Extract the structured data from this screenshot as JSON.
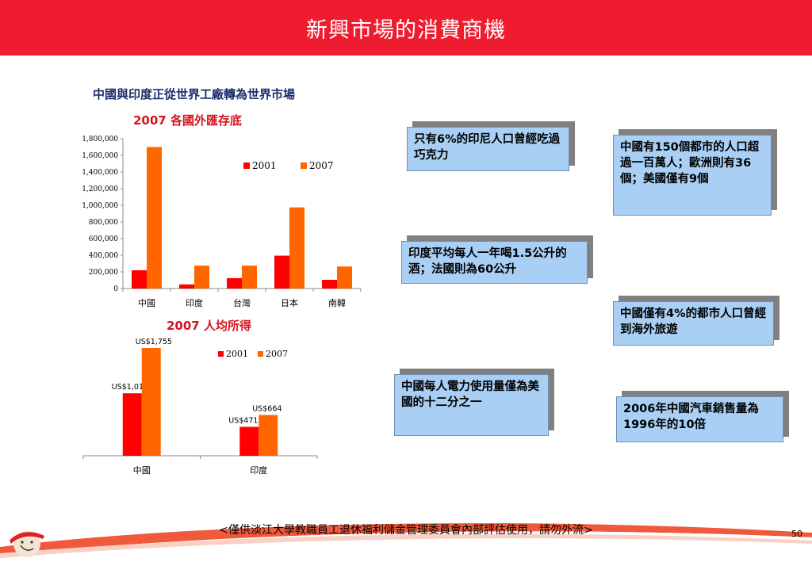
{
  "title": "新興市場的消費商機",
  "main_heading": "中國與印度正從世界工廠轉為世界市場",
  "colors": {
    "accent": "#ee1c2e",
    "series_2001": "#ff0000",
    "series_2007": "#ff6600",
    "callout": "#a9cff5"
  },
  "chart_data": [
    {
      "type": "bar",
      "title": "2007 各國外匯存底",
      "categories": [
        "中國",
        "印度",
        "台灣",
        "日本",
        "南韓"
      ],
      "series": [
        {
          "name": "2001",
          "values": [
            220000,
            50000,
            125000,
            395000,
            105000
          ]
        },
        {
          "name": "2007",
          "values": [
            1700000,
            275000,
            275000,
            975000,
            265000
          ]
        }
      ],
      "ylim": [
        0,
        1800000
      ],
      "yticks": [
        "0",
        "200,000",
        "400,000",
        "600,000",
        "800,000",
        "1,000,000",
        "1,200,000",
        "1,400,000",
        "1,600,000",
        "1,800,000"
      ],
      "legend": "top-right"
    },
    {
      "type": "bar",
      "title": "2007 人均所得",
      "categories": [
        "中國",
        "印度"
      ],
      "series": [
        {
          "name": "2001",
          "values": [
            1017,
            471
          ],
          "labels": [
            "US$1,017",
            "US$471"
          ]
        },
        {
          "name": "2007",
          "values": [
            1755,
            664
          ],
          "labels": [
            "US$1,755",
            "US$664"
          ]
        }
      ],
      "ylim": [
        0,
        1755
      ],
      "legend": "top-right"
    }
  ],
  "callouts": [
    "只有6%的印尼人口曾經吃過巧克力",
    "中國有150個都市的人口超過一百萬人；歐洲則有36個；美國僅有9個",
    "印度平均每人一年喝1.5公升的酒；法國則為60公升",
    "中國僅有4%的都市人口曾經到海外旅遊",
    "中國每人電力使用量僅為美國的十二分之一",
    "2006年中國汽車銷售量為1996年的10倍"
  ],
  "footer": "<僅供淡江大學教職員工退休福利儲金管理委員會內部評估使用，請勿外流>",
  "page_number": "50"
}
